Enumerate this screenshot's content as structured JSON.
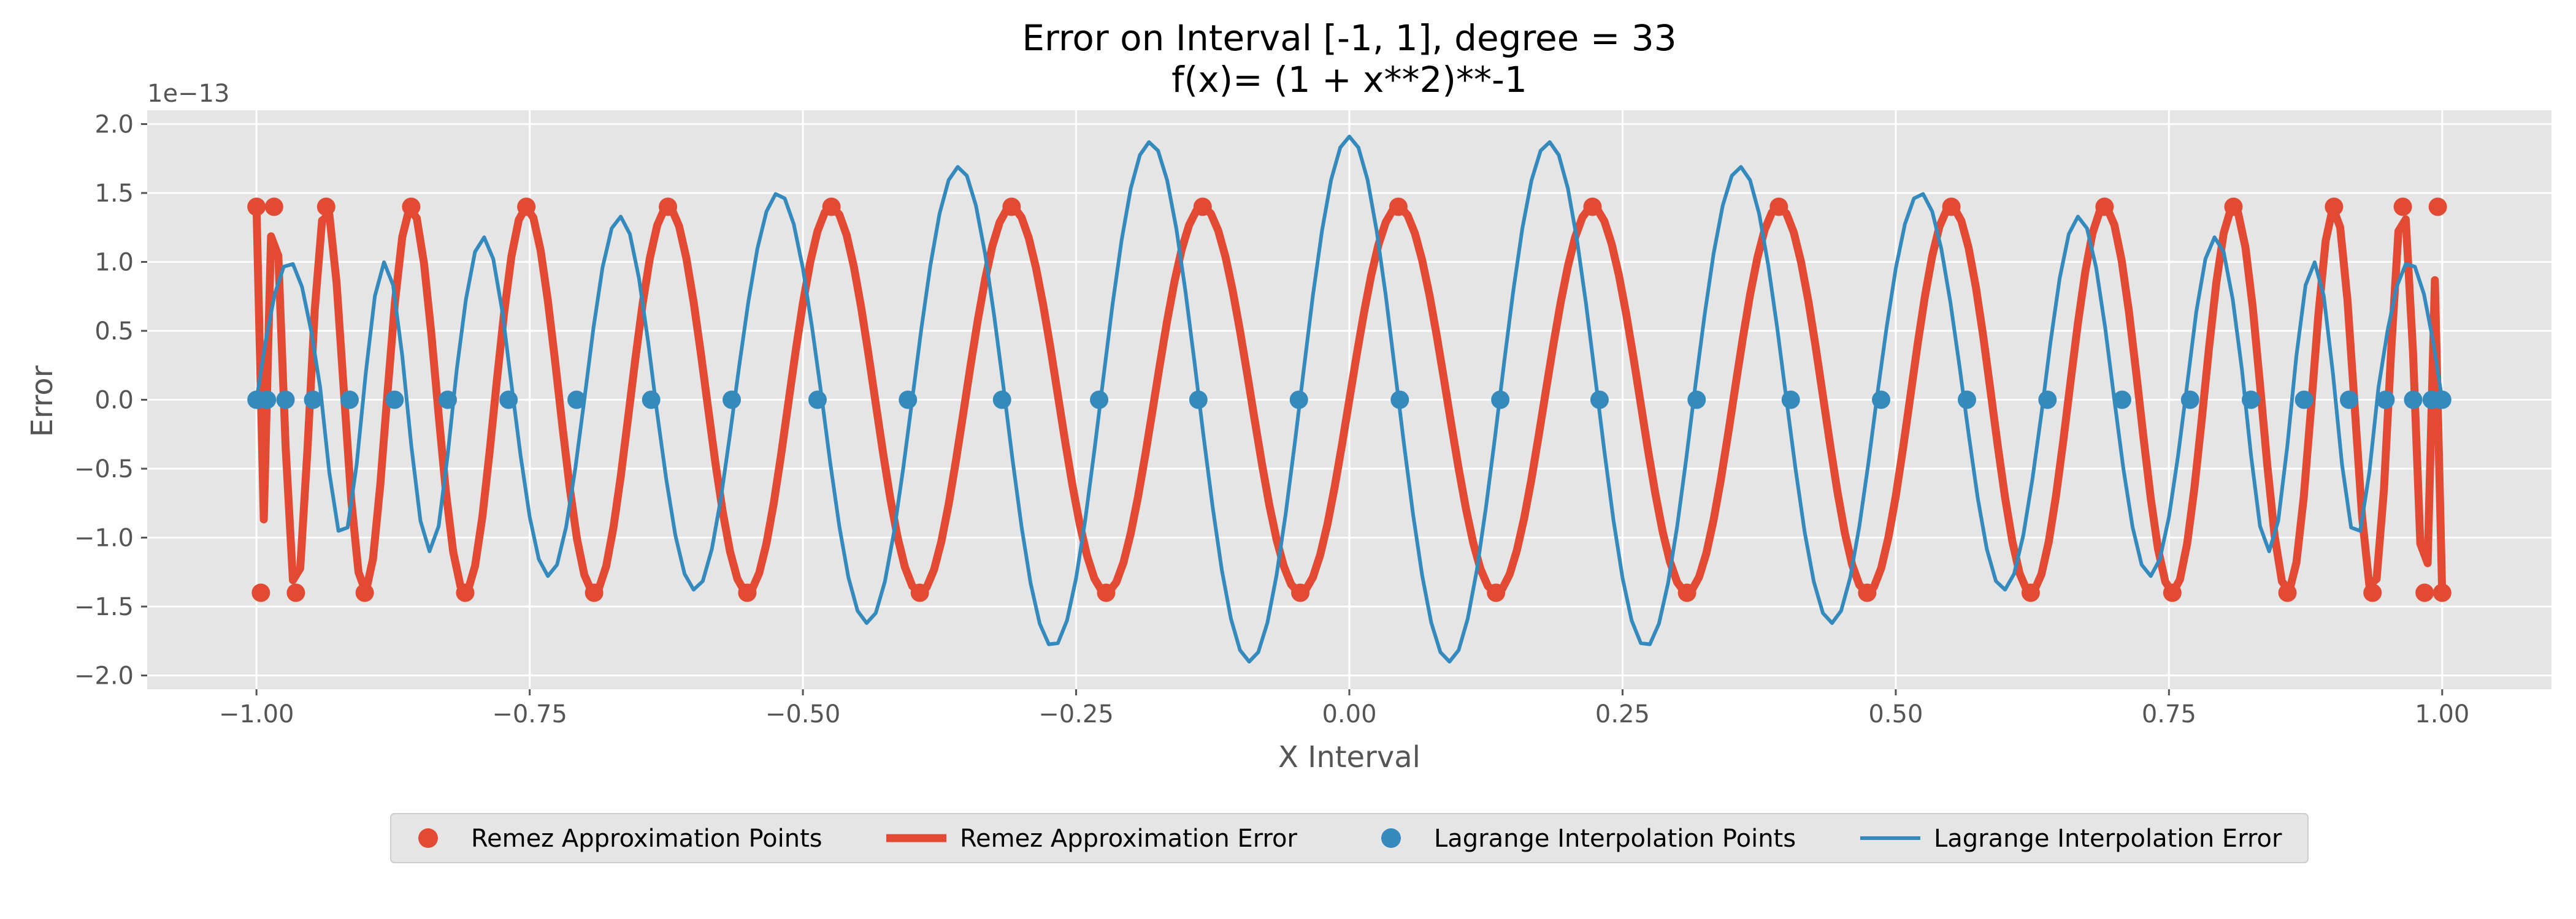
{
  "chart_data": {
    "type": "line",
    "title_line1": "Error on Interval [-1, 1], degree = 33",
    "title_line2": "f(x)= (1 + x**2)**-1",
    "xlabel": "X Interval",
    "ylabel": "Error",
    "y_offset_label": "1e−13",
    "xlim": [
      -1.1,
      1.1
    ],
    "ylim": [
      -2.1,
      2.1
    ],
    "x_ticks": [
      -1.0,
      -0.75,
      -0.5,
      -0.25,
      0.0,
      0.25,
      0.5,
      0.75,
      1.0
    ],
    "x_tick_labels": [
      "−1.00",
      "−0.75",
      "−0.50",
      "−0.25",
      "0.00",
      "0.25",
      "0.50",
      "0.75",
      "1.00"
    ],
    "y_ticks": [
      -2.0,
      -1.5,
      -1.0,
      -0.5,
      0.0,
      0.5,
      1.0,
      1.5,
      2.0
    ],
    "y_tick_labels": [
      "−2.0",
      "−1.5",
      "−1.0",
      "−0.5",
      "0.0",
      "0.5",
      "1.0",
      "1.5",
      "2.0"
    ],
    "grid": true,
    "legend_position": "bottom-center",
    "degree": 33,
    "remez_amplitude": 1.4,
    "series": [
      {
        "name": "Remez Approximation Points",
        "kind": "scatter",
        "color": "#E24A33"
      },
      {
        "name": "Remez Approximation Error",
        "kind": "line",
        "color": "#E24A33"
      },
      {
        "name": "Lagrange Interpolation Points",
        "kind": "scatter",
        "color": "#348ABD"
      },
      {
        "name": "Lagrange Interpolation Error",
        "kind": "line",
        "color": "#348ABD"
      }
    ],
    "lagrange_peaks": [
      {
        "x": -0.96,
        "y": 1.0
      },
      {
        "x": -0.92,
        "y": -1.0
      },
      {
        "x": -0.885,
        "y": 1.0
      },
      {
        "x": -0.84,
        "y": -1.1
      },
      {
        "x": -0.8,
        "y": 1.18
      },
      {
        "x": -0.73,
        "y": -1.28
      },
      {
        "x": -0.67,
        "y": 1.33
      },
      {
        "x": -0.6,
        "y": -1.38
      },
      {
        "x": -0.525,
        "y": 1.5
      },
      {
        "x": -0.44,
        "y": -1.62
      },
      {
        "x": -0.36,
        "y": 1.69
      },
      {
        "x": -0.27,
        "y": -1.79
      },
      {
        "x": -0.185,
        "y": 1.87
      },
      {
        "x": -0.09,
        "y": -1.9
      },
      {
        "x": 0.0,
        "y": 1.91
      },
      {
        "x": 0.09,
        "y": -1.9
      },
      {
        "x": 0.185,
        "y": 1.87
      },
      {
        "x": 0.27,
        "y": -1.79
      },
      {
        "x": 0.36,
        "y": 1.69
      },
      {
        "x": 0.44,
        "y": -1.62
      },
      {
        "x": 0.525,
        "y": 1.5
      },
      {
        "x": 0.6,
        "y": -1.38
      },
      {
        "x": 0.67,
        "y": 1.33
      },
      {
        "x": 0.73,
        "y": -1.28
      },
      {
        "x": 0.8,
        "y": 1.18
      },
      {
        "x": 0.84,
        "y": -1.1
      },
      {
        "x": 0.885,
        "y": 1.0
      },
      {
        "x": 0.92,
        "y": -1.0
      },
      {
        "x": 0.96,
        "y": 1.0
      }
    ]
  }
}
